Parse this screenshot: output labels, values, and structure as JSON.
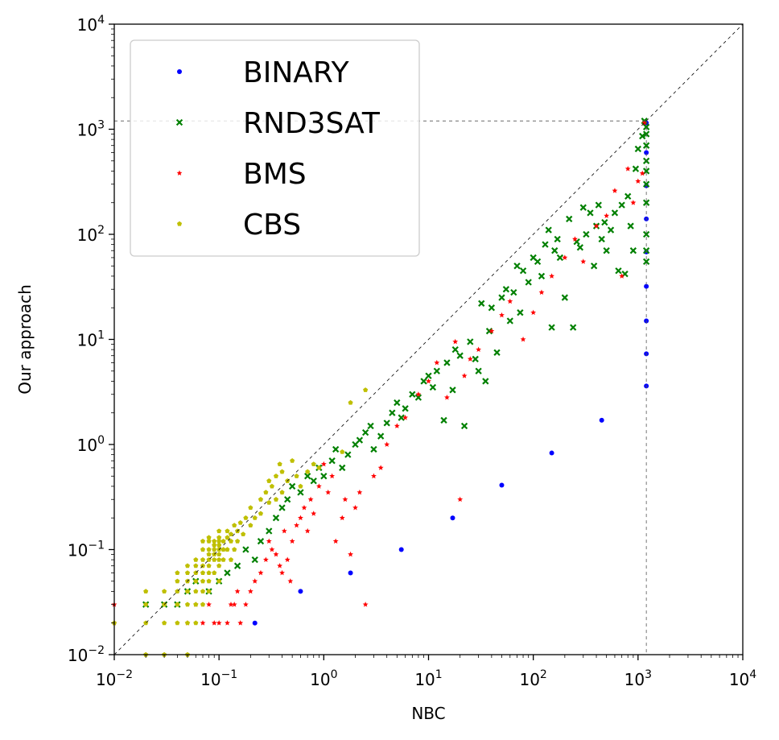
{
  "chart_data": {
    "type": "scatter",
    "xlabel": "NBC",
    "ylabel": "Our approach",
    "xscale": "log",
    "yscale": "log",
    "xlim": [
      0.01,
      10000
    ],
    "ylim": [
      0.01,
      10000
    ],
    "x_ticks": [
      {
        "base": "10",
        "exp": "−2"
      },
      {
        "base": "10",
        "exp": "−1"
      },
      {
        "base": "10",
        "exp": "0"
      },
      {
        "base": "10",
        "exp": "1"
      },
      {
        "base": "10",
        "exp": "2"
      },
      {
        "base": "10",
        "exp": "3"
      },
      {
        "base": "10",
        "exp": "4"
      }
    ],
    "y_ticks": [
      {
        "base": "10",
        "exp": "−2"
      },
      {
        "base": "10",
        "exp": "−1"
      },
      {
        "base": "10",
        "exp": "0"
      },
      {
        "base": "10",
        "exp": "1"
      },
      {
        "base": "10",
        "exp": "2"
      },
      {
        "base": "10",
        "exp": "3"
      },
      {
        "base": "10",
        "exp": "4"
      }
    ],
    "timeout": 1200,
    "diagonal": true,
    "grid": false,
    "legend_position": "top-left",
    "series": [
      {
        "name": "BINARY",
        "color": "#0000ff",
        "marker": "dot",
        "points": [
          [
            0.22,
            0.02
          ],
          [
            0.6,
            0.04
          ],
          [
            1.8,
            0.06
          ],
          [
            5.5,
            0.1
          ],
          [
            17,
            0.2
          ],
          [
            50,
            0.41
          ],
          [
            150,
            0.83
          ],
          [
            450,
            1.7
          ],
          [
            1200,
            3.6
          ],
          [
            1200,
            7.3
          ],
          [
            1200,
            15
          ],
          [
            1200,
            32
          ],
          [
            1200,
            68
          ],
          [
            1200,
            140
          ],
          [
            1200,
            290
          ],
          [
            1200,
            600
          ],
          [
            1200,
            1150
          ]
        ]
      },
      {
        "name": "RND3SAT",
        "color": "#008000",
        "marker": "x",
        "points": [
          [
            0.02,
            0.03
          ],
          [
            0.03,
            0.03
          ],
          [
            0.04,
            0.03
          ],
          [
            0.05,
            0.04
          ],
          [
            0.06,
            0.05
          ],
          [
            0.08,
            0.04
          ],
          [
            0.1,
            0.05
          ],
          [
            0.12,
            0.06
          ],
          [
            0.15,
            0.07
          ],
          [
            0.18,
            0.1
          ],
          [
            0.22,
            0.08
          ],
          [
            0.25,
            0.12
          ],
          [
            0.3,
            0.15
          ],
          [
            0.35,
            0.2
          ],
          [
            0.4,
            0.25
          ],
          [
            0.45,
            0.3
          ],
          [
            0.5,
            0.4
          ],
          [
            0.6,
            0.35
          ],
          [
            0.7,
            0.5
          ],
          [
            0.8,
            0.45
          ],
          [
            0.9,
            0.6
          ],
          [
            1.0,
            0.5
          ],
          [
            1.2,
            0.7
          ],
          [
            1.3,
            0.9
          ],
          [
            1.5,
            0.6
          ],
          [
            1.7,
            0.8
          ],
          [
            2.0,
            1.0
          ],
          [
            2.2,
            1.1
          ],
          [
            2.5,
            1.3
          ],
          [
            2.8,
            1.5
          ],
          [
            3.0,
            0.9
          ],
          [
            3.5,
            1.2
          ],
          [
            4.0,
            1.6
          ],
          [
            4.5,
            2.0
          ],
          [
            5.0,
            2.5
          ],
          [
            5.5,
            1.8
          ],
          [
            6.0,
            2.2
          ],
          [
            7.0,
            3.0
          ],
          [
            8.0,
            2.8
          ],
          [
            9.0,
            4.0
          ],
          [
            10,
            4.5
          ],
          [
            11,
            3.5
          ],
          [
            12,
            5.0
          ],
          [
            14,
            1.7
          ],
          [
            15,
            6.0
          ],
          [
            17,
            3.3
          ],
          [
            18,
            8.0
          ],
          [
            20,
            7.0
          ],
          [
            22,
            1.5
          ],
          [
            25,
            9.5
          ],
          [
            28,
            6.5
          ],
          [
            30,
            5.0
          ],
          [
            32,
            22
          ],
          [
            35,
            4.0
          ],
          [
            38,
            12
          ],
          [
            40,
            20
          ],
          [
            45,
            7.5
          ],
          [
            50,
            25
          ],
          [
            55,
            30
          ],
          [
            60,
            15
          ],
          [
            65,
            28
          ],
          [
            70,
            50
          ],
          [
            75,
            18
          ],
          [
            80,
            45
          ],
          [
            90,
            35
          ],
          [
            100,
            60
          ],
          [
            110,
            55
          ],
          [
            120,
            40
          ],
          [
            130,
            80
          ],
          [
            140,
            110
          ],
          [
            150,
            13
          ],
          [
            160,
            70
          ],
          [
            170,
            90
          ],
          [
            180,
            60
          ],
          [
            200,
            25
          ],
          [
            220,
            140
          ],
          [
            240,
            13
          ],
          [
            260,
            85
          ],
          [
            280,
            75
          ],
          [
            300,
            180
          ],
          [
            320,
            100
          ],
          [
            350,
            160
          ],
          [
            380,
            50
          ],
          [
            400,
            120
          ],
          [
            420,
            190
          ],
          [
            450,
            90
          ],
          [
            480,
            130
          ],
          [
            500,
            70
          ],
          [
            550,
            110
          ],
          [
            600,
            160
          ],
          [
            650,
            45
          ],
          [
            700,
            190
          ],
          [
            750,
            42
          ],
          [
            800,
            230
          ],
          [
            850,
            120
          ],
          [
            900,
            70
          ],
          [
            950,
            420
          ],
          [
            1000,
            650
          ],
          [
            1100,
            860
          ],
          [
            1150,
            1200
          ],
          [
            1200,
            1050
          ],
          [
            1200,
            900
          ],
          [
            1200,
            700
          ],
          [
            1200,
            500
          ],
          [
            1200,
            400
          ],
          [
            1200,
            300
          ],
          [
            1200,
            200
          ],
          [
            1200,
            100
          ],
          [
            1200,
            70
          ],
          [
            1200,
            55
          ]
        ]
      },
      {
        "name": "BMS",
        "color": "#ff0000",
        "marker": "star",
        "points": [
          [
            0.01,
            0.03
          ],
          [
            0.01,
            0.02
          ],
          [
            0.05,
            0.02
          ],
          [
            0.06,
            0.03
          ],
          [
            0.07,
            0.02
          ],
          [
            0.08,
            0.03
          ],
          [
            0.09,
            0.02
          ],
          [
            0.1,
            0.02
          ],
          [
            0.12,
            0.02
          ],
          [
            0.13,
            0.03
          ],
          [
            0.14,
            0.03
          ],
          [
            0.15,
            0.04
          ],
          [
            0.16,
            0.02
          ],
          [
            0.18,
            0.03
          ],
          [
            0.2,
            0.04
          ],
          [
            0.22,
            0.05
          ],
          [
            0.25,
            0.06
          ],
          [
            0.28,
            0.08
          ],
          [
            0.3,
            0.12
          ],
          [
            0.32,
            0.1
          ],
          [
            0.35,
            0.09
          ],
          [
            0.38,
            0.07
          ],
          [
            0.4,
            0.06
          ],
          [
            0.42,
            0.15
          ],
          [
            0.45,
            0.08
          ],
          [
            0.48,
            0.05
          ],
          [
            0.5,
            0.12
          ],
          [
            0.55,
            0.17
          ],
          [
            0.6,
            0.2
          ],
          [
            0.65,
            0.25
          ],
          [
            0.7,
            0.15
          ],
          [
            0.75,
            0.3
          ],
          [
            0.8,
            0.22
          ],
          [
            0.9,
            0.4
          ],
          [
            1.0,
            0.65
          ],
          [
            1.1,
            0.35
          ],
          [
            1.2,
            0.5
          ],
          [
            1.3,
            0.12
          ],
          [
            1.5,
            0.2
          ],
          [
            1.6,
            0.3
          ],
          [
            1.8,
            0.09
          ],
          [
            2.0,
            0.25
          ],
          [
            2.2,
            0.35
          ],
          [
            2.5,
            0.03
          ],
          [
            3.0,
            0.5
          ],
          [
            3.5,
            0.6
          ],
          [
            4.0,
            1.0
          ],
          [
            5.0,
            1.5
          ],
          [
            6.0,
            1.8
          ],
          [
            8.0,
            3.0
          ],
          [
            10,
            4.0
          ],
          [
            12,
            6.0
          ],
          [
            15,
            2.8
          ],
          [
            18,
            9.5
          ],
          [
            20,
            0.3
          ],
          [
            22,
            4.5
          ],
          [
            25,
            6.5
          ],
          [
            30,
            8.0
          ],
          [
            40,
            12
          ],
          [
            50,
            17
          ],
          [
            60,
            23
          ],
          [
            80,
            10
          ],
          [
            100,
            18
          ],
          [
            120,
            28
          ],
          [
            150,
            40
          ],
          [
            200,
            60
          ],
          [
            250,
            90
          ],
          [
            300,
            55
          ],
          [
            400,
            120
          ],
          [
            500,
            150
          ],
          [
            600,
            260
          ],
          [
            700,
            40
          ],
          [
            800,
            420
          ],
          [
            900,
            200
          ],
          [
            1000,
            320
          ],
          [
            1100,
            380
          ],
          [
            1150,
            1150
          ]
        ]
      },
      {
        "name": "CBS",
        "color": "#bfbf00",
        "marker": "pentagon",
        "points": [
          [
            0.01,
            0.02
          ],
          [
            0.02,
            0.02
          ],
          [
            0.02,
            0.01
          ],
          [
            0.02,
            0.04
          ],
          [
            0.02,
            0.03
          ],
          [
            0.03,
            0.01
          ],
          [
            0.03,
            0.02
          ],
          [
            0.03,
            0.03
          ],
          [
            0.03,
            0.04
          ],
          [
            0.04,
            0.02
          ],
          [
            0.04,
            0.03
          ],
          [
            0.04,
            0.04
          ],
          [
            0.04,
            0.05
          ],
          [
            0.04,
            0.06
          ],
          [
            0.05,
            0.01
          ],
          [
            0.05,
            0.02
          ],
          [
            0.05,
            0.03
          ],
          [
            0.05,
            0.04
          ],
          [
            0.05,
            0.05
          ],
          [
            0.05,
            0.06
          ],
          [
            0.05,
            0.07
          ],
          [
            0.06,
            0.02
          ],
          [
            0.06,
            0.03
          ],
          [
            0.06,
            0.04
          ],
          [
            0.06,
            0.05
          ],
          [
            0.06,
            0.06
          ],
          [
            0.06,
            0.07
          ],
          [
            0.06,
            0.08
          ],
          [
            0.07,
            0.03
          ],
          [
            0.07,
            0.04
          ],
          [
            0.07,
            0.05
          ],
          [
            0.07,
            0.06
          ],
          [
            0.07,
            0.07
          ],
          [
            0.07,
            0.08
          ],
          [
            0.07,
            0.1
          ],
          [
            0.07,
            0.12
          ],
          [
            0.08,
            0.04
          ],
          [
            0.08,
            0.05
          ],
          [
            0.08,
            0.06
          ],
          [
            0.08,
            0.07
          ],
          [
            0.08,
            0.08
          ],
          [
            0.08,
            0.09
          ],
          [
            0.08,
            0.1
          ],
          [
            0.08,
            0.12
          ],
          [
            0.08,
            0.13
          ],
          [
            0.09,
            0.06
          ],
          [
            0.09,
            0.08
          ],
          [
            0.09,
            0.09
          ],
          [
            0.09,
            0.1
          ],
          [
            0.09,
            0.11
          ],
          [
            0.09,
            0.12
          ],
          [
            0.1,
            0.05
          ],
          [
            0.1,
            0.07
          ],
          [
            0.1,
            0.08
          ],
          [
            0.1,
            0.09
          ],
          [
            0.1,
            0.1
          ],
          [
            0.1,
            0.11
          ],
          [
            0.1,
            0.12
          ],
          [
            0.1,
            0.13
          ],
          [
            0.1,
            0.15
          ],
          [
            0.11,
            0.08
          ],
          [
            0.11,
            0.1
          ],
          [
            0.11,
            0.12
          ],
          [
            0.12,
            0.1
          ],
          [
            0.12,
            0.13
          ],
          [
            0.12,
            0.15
          ],
          [
            0.13,
            0.08
          ],
          [
            0.13,
            0.12
          ],
          [
            0.13,
            0.14
          ],
          [
            0.14,
            0.1
          ],
          [
            0.14,
            0.17
          ],
          [
            0.15,
            0.12
          ],
          [
            0.15,
            0.15
          ],
          [
            0.16,
            0.18
          ],
          [
            0.17,
            0.14
          ],
          [
            0.18,
            0.2
          ],
          [
            0.2,
            0.17
          ],
          [
            0.2,
            0.25
          ],
          [
            0.22,
            0.2
          ],
          [
            0.25,
            0.3
          ],
          [
            0.25,
            0.22
          ],
          [
            0.28,
            0.35
          ],
          [
            0.3,
            0.28
          ],
          [
            0.3,
            0.45
          ],
          [
            0.32,
            0.4
          ],
          [
            0.35,
            0.3
          ],
          [
            0.35,
            0.5
          ],
          [
            0.38,
            0.65
          ],
          [
            0.4,
            0.35
          ],
          [
            0.4,
            0.55
          ],
          [
            0.45,
            0.45
          ],
          [
            0.5,
            0.7
          ],
          [
            0.55,
            0.5
          ],
          [
            0.6,
            0.4
          ],
          [
            0.7,
            0.55
          ],
          [
            0.8,
            0.65
          ],
          [
            0.9,
            0.6
          ],
          [
            1.5,
            0.85
          ],
          [
            1.8,
            2.5
          ],
          [
            2.5,
            3.3
          ]
        ]
      }
    ]
  }
}
